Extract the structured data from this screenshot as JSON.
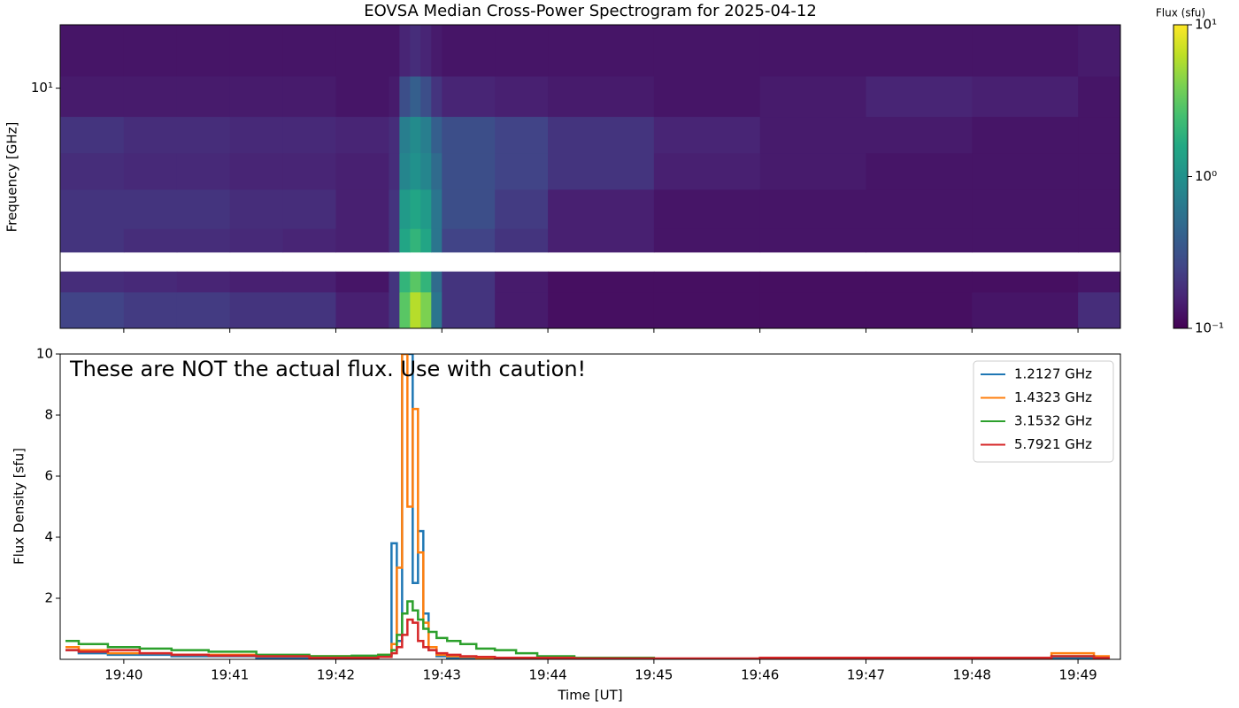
{
  "chart_data": [
    {
      "type": "heatmap",
      "title": "EOVSA Median Cross-Power Spectrogram for 2025-04-12",
      "y_label": "Frequency [GHz]",
      "yscale": "log",
      "ylim": [
        1.5,
        16.5
      ],
      "yticks": [
        {
          "value": 10,
          "label": "10¹"
        }
      ],
      "colormap": "viridis",
      "color_scale": "log",
      "clim": [
        0.1,
        10
      ],
      "colorbar_label": "Flux (sfu)",
      "cticks": [
        {
          "value": 0.1,
          "label": "10⁻¹"
        },
        {
          "value": 1,
          "label": "10⁰"
        },
        {
          "value": 10,
          "label": "10¹"
        }
      ],
      "xbins": [
        39.4,
        40,
        40.5,
        41,
        41.5,
        42,
        42.5,
        42.6,
        42.7,
        42.8,
        42.9,
        43,
        43.5,
        44,
        45,
        46,
        47,
        48,
        49,
        49.4
      ],
      "ybins": [
        1.5,
        2.0,
        2.35,
        2.74,
        3.3,
        4.5,
        6,
        8,
        11,
        16.5
      ],
      "values": [
        [
          0.25,
          0.22,
          0.22,
          0.2,
          0.2,
          0.15,
          0.2,
          3,
          6,
          4,
          0.6,
          0.2,
          0.14,
          0.12,
          0.12,
          0.12,
          0.12,
          0.13,
          0.18
        ],
        [
          0.18,
          0.17,
          0.16,
          0.15,
          0.15,
          0.13,
          0.2,
          2,
          3,
          2,
          0.5,
          0.2,
          0.14,
          0.12,
          0.12,
          0.12,
          0.12,
          0.12,
          0.13
        ],
        [
          null,
          null,
          null,
          null,
          null,
          null,
          null,
          null,
          null,
          null,
          null,
          null,
          null,
          null,
          null,
          null,
          null,
          null,
          null
        ],
        [
          0.2,
          0.18,
          0.18,
          0.17,
          0.16,
          0.15,
          0.2,
          1.5,
          2,
          1.5,
          0.6,
          0.25,
          0.2,
          0.15,
          0.13,
          0.13,
          0.13,
          0.13,
          0.13
        ],
        [
          0.2,
          0.2,
          0.2,
          0.18,
          0.18,
          0.15,
          0.2,
          1.2,
          1.5,
          1.2,
          0.6,
          0.3,
          0.22,
          0.15,
          0.13,
          0.13,
          0.13,
          0.13,
          0.13
        ],
        [
          0.18,
          0.17,
          0.17,
          0.16,
          0.16,
          0.15,
          0.18,
          0.8,
          1,
          0.8,
          0.5,
          0.3,
          0.25,
          0.2,
          0.15,
          0.14,
          0.13,
          0.13,
          0.13
        ],
        [
          0.2,
          0.18,
          0.18,
          0.17,
          0.17,
          0.16,
          0.18,
          0.7,
          0.9,
          0.7,
          0.4,
          0.3,
          0.25,
          0.2,
          0.16,
          0.14,
          0.14,
          0.13,
          0.13
        ],
        [
          0.14,
          0.14,
          0.14,
          0.14,
          0.14,
          0.13,
          0.14,
          0.3,
          0.4,
          0.3,
          0.2,
          0.16,
          0.15,
          0.14,
          0.13,
          0.14,
          0.16,
          0.15,
          0.13
        ],
        [
          0.13,
          0.13,
          0.13,
          0.13,
          0.13,
          0.13,
          0.13,
          0.16,
          0.18,
          0.16,
          0.14,
          0.13,
          0.13,
          0.13,
          0.13,
          0.13,
          0.13,
          0.13,
          0.14
        ]
      ]
    },
    {
      "type": "line",
      "drawstyle": "steps-mid",
      "annotation": "These are NOT the actual flux. Use with caution!",
      "x_label": "Time [UT]",
      "y_label": "Flux Density [sfu]",
      "xlim": [
        39.4,
        49.4
      ],
      "xticks": [
        {
          "value": 40,
          "label": "19:40"
        },
        {
          "value": 41,
          "label": "19:41"
        },
        {
          "value": 42,
          "label": "19:42"
        },
        {
          "value": 43,
          "label": "19:43"
        },
        {
          "value": 44,
          "label": "19:44"
        },
        {
          "value": 45,
          "label": "19:45"
        },
        {
          "value": 46,
          "label": "19:46"
        },
        {
          "value": 47,
          "label": "19:47"
        },
        {
          "value": 48,
          "label": "19:48"
        },
        {
          "value": 49,
          "label": "19:49"
        }
      ],
      "ylim": [
        0,
        10
      ],
      "yticks": [
        2,
        4,
        6,
        8,
        10
      ],
      "legend": "upper right",
      "x": [
        39.45,
        39.7,
        40,
        40.3,
        40.6,
        41,
        41.5,
        42,
        42.3,
        42.5,
        42.55,
        42.6,
        42.65,
        42.7,
        42.75,
        42.8,
        42.85,
        42.9,
        43,
        43.1,
        43.25,
        43.4,
        43.6,
        43.8,
        44,
        44.5,
        45.5,
        46.5,
        47.5,
        48.5,
        49,
        49.3
      ],
      "series": [
        {
          "name": "1.2127 GHz",
          "color": "#1f77b4",
          "values": [
            0.3,
            0.2,
            0.15,
            0.15,
            0.1,
            0.1,
            0.05,
            0.05,
            0.05,
            0.1,
            3.8,
            0.6,
            10,
            10,
            2.5,
            4.2,
            1.5,
            0.3,
            0.1,
            0.05,
            0.05,
            0.02,
            0.02,
            0.02,
            0.02,
            0.01,
            0.01,
            0.01,
            0.01,
            0.01,
            0.05,
            0.05
          ]
        },
        {
          "name": "1.4323 GHz",
          "color": "#ff7f0e",
          "values": [
            0.4,
            0.3,
            0.2,
            0.2,
            0.15,
            0.15,
            0.1,
            0.1,
            0.1,
            0.15,
            0.5,
            3,
            10,
            5,
            8.2,
            3.5,
            1.2,
            0.4,
            0.15,
            0.1,
            0.08,
            0.05,
            0.05,
            0.04,
            0.03,
            0.02,
            0.02,
            0.03,
            0.03,
            0.05,
            0.2,
            0.1
          ]
        },
        {
          "name": "3.1532 GHz",
          "color": "#2ca02c",
          "values": [
            0.6,
            0.5,
            0.4,
            0.35,
            0.3,
            0.25,
            0.15,
            0.1,
            0.12,
            0.15,
            0.3,
            0.8,
            1.5,
            1.9,
            1.6,
            1.3,
            1.0,
            0.9,
            0.7,
            0.6,
            0.5,
            0.35,
            0.3,
            0.2,
            0.1,
            0.05,
            0.02,
            0.02,
            0.02,
            0.02,
            0.1,
            0.05
          ]
        },
        {
          "name": "5.7921 GHz",
          "color": "#d62728",
          "values": [
            0.3,
            0.25,
            0.3,
            0.2,
            0.15,
            0.12,
            0.1,
            0.05,
            0.05,
            0.08,
            0.2,
            0.4,
            0.8,
            1.3,
            1.2,
            0.6,
            0.4,
            0.3,
            0.2,
            0.15,
            0.1,
            0.08,
            0.05,
            0.05,
            0.05,
            0.03,
            0.03,
            0.05,
            0.05,
            0.05,
            0.1,
            0.05
          ]
        }
      ]
    }
  ]
}
